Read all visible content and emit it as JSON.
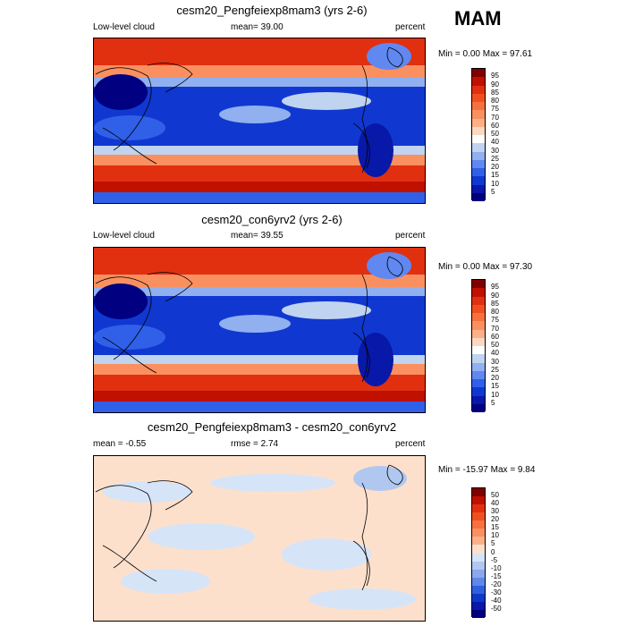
{
  "season": "MAM",
  "panels": [
    {
      "title": "cesm20_Pengfeiexp8mam3 (yrs 2-6)",
      "left_label": "Low-level cloud",
      "center_label": "mean=  39.00",
      "right_label": "percent",
      "minmax": "Min =   0.00 Max =   97.61",
      "levels": [
        "95",
        "90",
        "85",
        "80",
        "75",
        "70",
        "60",
        "50",
        "40",
        "30",
        "25",
        "20",
        "15",
        "10",
        "5"
      ],
      "colors": [
        "#800000",
        "#c01000",
        "#e03010",
        "#f05020",
        "#f77040",
        "#fa9060",
        "#fcb088",
        "#fcd8c0",
        "#ffffff",
        "#c0d4f0",
        "#90b0f0",
        "#6088f0",
        "#3060e8",
        "#1038d0",
        "#0818a8",
        "#000080"
      ]
    },
    {
      "title": "cesm20_con6yrv2 (yrs 2-6)",
      "left_label": "Low-level cloud",
      "center_label": "mean=  39.55",
      "right_label": "percent",
      "minmax": "Min =   0.00 Max =   97.30",
      "levels": [
        "95",
        "90",
        "85",
        "80",
        "75",
        "70",
        "60",
        "50",
        "40",
        "30",
        "25",
        "20",
        "15",
        "10",
        "5"
      ],
      "colors": [
        "#800000",
        "#c01000",
        "#e03010",
        "#f05020",
        "#f77040",
        "#fa9060",
        "#fcb088",
        "#fcd8c0",
        "#ffffff",
        "#c0d4f0",
        "#90b0f0",
        "#6088f0",
        "#3060e8",
        "#1038d0",
        "#0818a8",
        "#000080"
      ]
    },
    {
      "title": "cesm20_Pengfeiexp8mam3 - cesm20_con6yrv2",
      "left_label": "mean =  -0.55",
      "center_label": "rmse =   2.74",
      "right_label": "percent",
      "minmax": "Min = -15.97 Max =   9.84",
      "levels": [
        "50",
        "40",
        "30",
        "20",
        "15",
        "10",
        "5",
        "0",
        "-5",
        "-10",
        "-15",
        "-20",
        "-30",
        "-40",
        "-50"
      ],
      "colors": [
        "#800000",
        "#c01000",
        "#e03010",
        "#f05020",
        "#f77040",
        "#fa9060",
        "#fcb088",
        "#fde0cc",
        "#d6e4f8",
        "#b0c8f0",
        "#8aa8ec",
        "#6088e8",
        "#3060e0",
        "#1038c8",
        "#0818a8",
        "#000080"
      ]
    }
  ]
}
